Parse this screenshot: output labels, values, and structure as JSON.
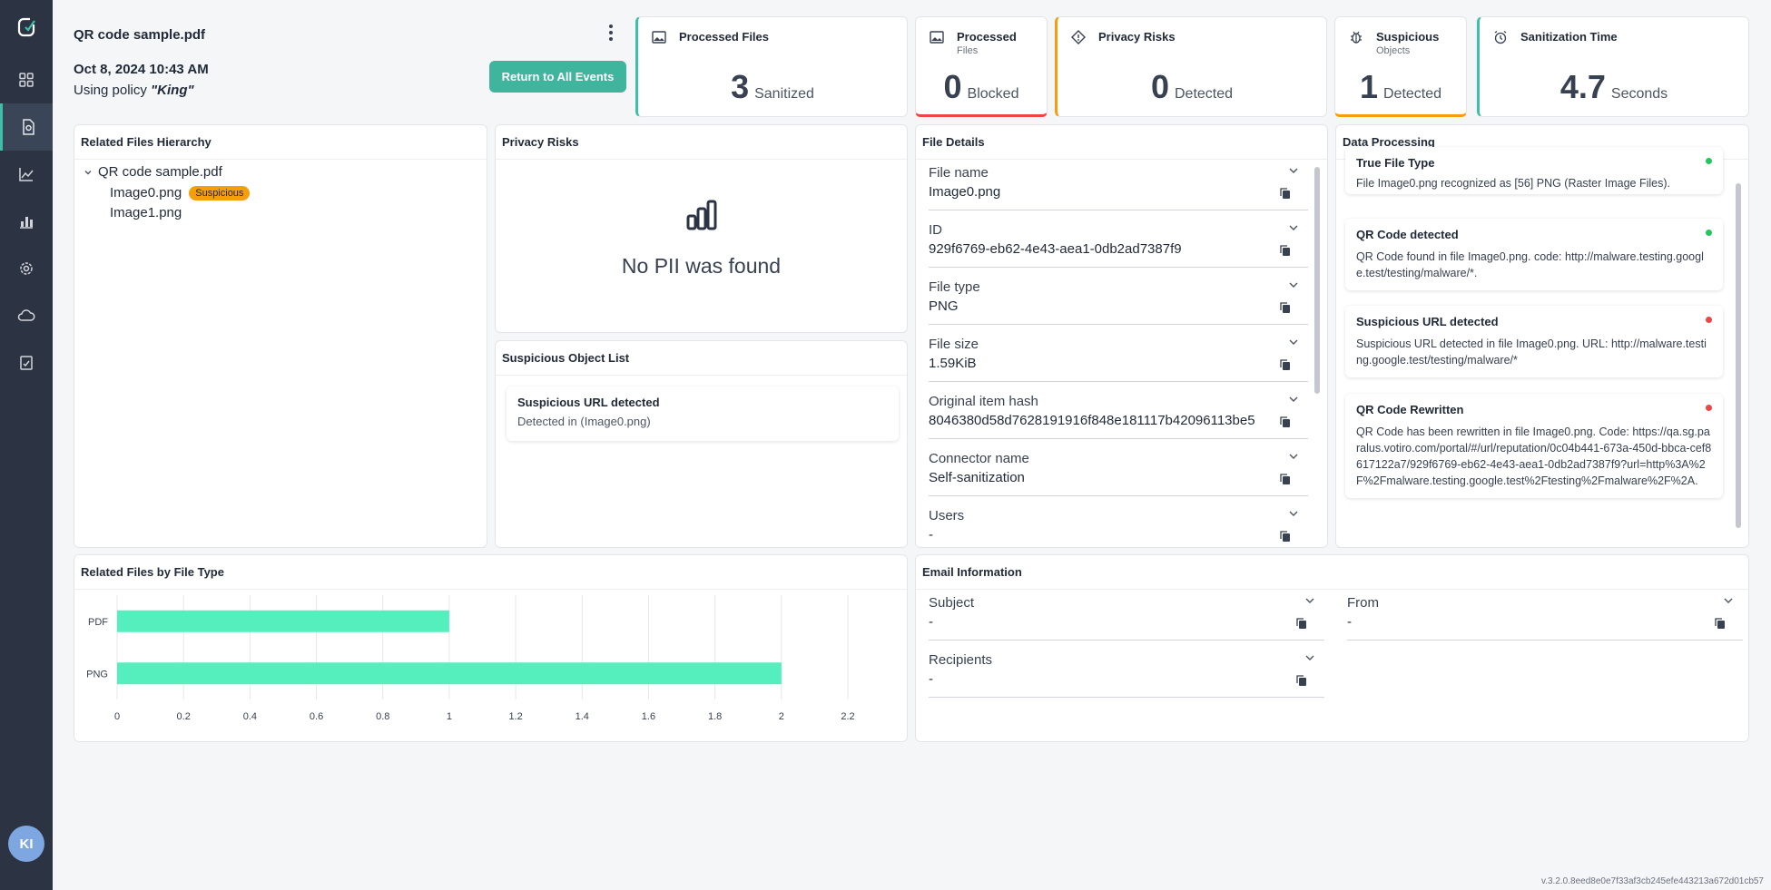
{
  "sidebar": {
    "items": [
      {
        "icon": "logo-icon"
      },
      {
        "icon": "dashboard-grid-icon"
      },
      {
        "icon": "file-events-icon",
        "active": true
      },
      {
        "icon": "line-chart-icon"
      },
      {
        "icon": "reports-icon"
      },
      {
        "icon": "settings-gear-icon"
      },
      {
        "icon": "cloud-icon"
      },
      {
        "icon": "audit-icon"
      }
    ],
    "avatar": "KI"
  },
  "header": {
    "file_name": "QR code sample.pdf",
    "date": "Oct 8, 2024 10:43 AM",
    "policy_prefix": "Using policy ",
    "policy_name": "\"King\"",
    "return_button": "Return to All Events"
  },
  "stats": [
    {
      "title": "Processed Files",
      "sub": "",
      "value": "3",
      "unit": "Sanitized",
      "icon": "image-file-icon"
    },
    {
      "title": "Processed",
      "sub": "Files",
      "value": "0",
      "unit": "Blocked",
      "icon": "image-file-icon"
    },
    {
      "title": "Privacy Risks",
      "sub": "",
      "value": "0",
      "unit": "Detected",
      "icon": "diamond-warning-icon"
    },
    {
      "title": "Suspicious",
      "sub": "Objects",
      "value": "1",
      "unit": "Detected",
      "icon": "bug-icon"
    },
    {
      "title": "Sanitization Time",
      "sub": "",
      "value": "4.7",
      "unit": "Seconds",
      "icon": "alarm-clock-icon"
    }
  ],
  "hierarchy": {
    "title": "Related Files Hierarchy",
    "root": "QR code sample.pdf",
    "children": [
      {
        "name": "Image0.png",
        "badge": "Suspicious"
      },
      {
        "name": "Image1.png",
        "badge": ""
      }
    ]
  },
  "privacy": {
    "title": "Privacy Risks",
    "empty_text": "No PII was found"
  },
  "suspicious_list": {
    "title": "Suspicious Object List",
    "items": [
      {
        "title": "Suspicious URL detected",
        "detail": "Detected in (Image0.png)"
      }
    ]
  },
  "file_details": {
    "title": "File Details",
    "fields": [
      {
        "label": "File name",
        "value": "Image0.png"
      },
      {
        "label": "ID",
        "value": "929f6769-eb62-4e43-aea1-0db2ad7387f9"
      },
      {
        "label": "File type",
        "value": "PNG"
      },
      {
        "label": "File size",
        "value": "1.59KiB"
      },
      {
        "label": "Original item hash",
        "value": "8046380d58d7628191916f848e181117b42096113be5"
      },
      {
        "label": "Connector name",
        "value": "Self-sanitization"
      },
      {
        "label": "Users",
        "value": "-"
      }
    ]
  },
  "data_processing": {
    "title": "Data Processing",
    "items": [
      {
        "title": "True File Type",
        "detail": "File Image0.png recognized as [56] PNG (Raster Image Files).",
        "status": "#22c55e"
      },
      {
        "title": "QR Code detected",
        "detail": "QR Code found in file Image0.png. code: http://malware.testing.google.test/testing/malware/*.",
        "status": "#22c55e"
      },
      {
        "title": "Suspicious URL detected",
        "detail": "Suspicious URL detected in file Image0.png. URL: http://malware.testing.google.test/testing/malware/*",
        "status": "#ef4444"
      },
      {
        "title": "QR Code Rewritten",
        "detail": "QR Code has been rewritten in file Image0.png. Code: https://qa.sg.paralus.votiro.com/portal/#/url/reputation/0c04b441-673a-450d-bbca-cef8617122a7/929f6769-eb62-4e43-aea1-0db2ad7387f9?url=http%3A%2F%2Fmalware.testing.google.test%2Ftesting%2Fmalware%2F%2A.",
        "status": "#ef4444"
      }
    ]
  },
  "files_by_type": {
    "title": "Related Files by File Type"
  },
  "chart_data": {
    "type": "bar",
    "orientation": "horizontal",
    "title": "Related Files by File Type",
    "categories": [
      "PDF",
      "PNG"
    ],
    "values": [
      1,
      2
    ],
    "xlim": [
      0,
      2.2
    ],
    "xticks": [
      "0",
      "0.2",
      "0.4",
      "0.6",
      "0.8",
      "1",
      "1.2",
      "1.4",
      "1.6",
      "1.8",
      "2",
      "2.2"
    ],
    "color": "#55efbd",
    "grid": true
  },
  "email": {
    "title": "Email Information",
    "fields": [
      {
        "label": "Subject",
        "value": "-"
      },
      {
        "label": "From",
        "value": "-"
      },
      {
        "label": "Recipients",
        "value": "-"
      }
    ]
  },
  "version": "v.3.2.0.8eed8e0e7f33af3cb245efe443213a672d01cb57"
}
